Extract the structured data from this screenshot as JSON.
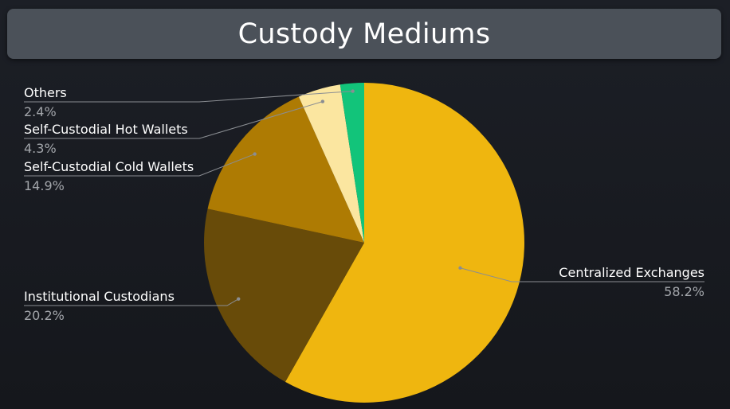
{
  "title": "Custody Mediums",
  "chart_data": {
    "type": "pie",
    "title": "Custody Mediums",
    "slices": [
      {
        "label": "Centralized Exchanges",
        "value": 58.2,
        "display": "58.2%",
        "color": "#efb60f"
      },
      {
        "label": "Institutional Custodians",
        "value": 20.2,
        "display": "20.2%",
        "color": "#684b09"
      },
      {
        "label": "Self-Custodial Cold Wallets",
        "value": 14.9,
        "display": "14.9%",
        "color": "#ae7b03"
      },
      {
        "label": "Self-Custodial Hot Wallets",
        "value": 4.3,
        "display": "4.3%",
        "color": "#fbe6a0"
      },
      {
        "label": "Others",
        "value": 2.4,
        "display": "2.4%",
        "color": "#12c47a"
      }
    ],
    "start_angle_deg": 0,
    "direction": "clockwise",
    "legend": "none",
    "label_placement": "outside-with-leader-lines",
    "colors": {
      "background": "#1a1c22",
      "title_bar": "#4b5159",
      "leader_line": "#8a8d92"
    }
  }
}
